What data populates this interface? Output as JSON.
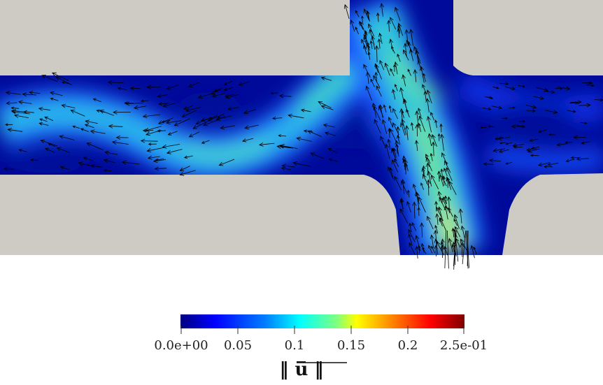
{
  "colorbar": {
    "ticks": [
      "0.0e+00",
      "0.05",
      "0.1",
      "0.15",
      "0.2",
      "2.5e-01"
    ],
    "range": [
      0,
      0.25
    ],
    "title": "‖ u̅ ‖",
    "colormap": [
      "#00007f",
      "#0000ff",
      "#007fff",
      "#00ffff",
      "#7fff7f",
      "#ffff00",
      "#ff7f00",
      "#ff0000",
      "#7f0000"
    ]
  },
  "colors": {
    "background": "#ffffff",
    "solid": "#cdcbc4",
    "arrow": "#000000"
  }
}
